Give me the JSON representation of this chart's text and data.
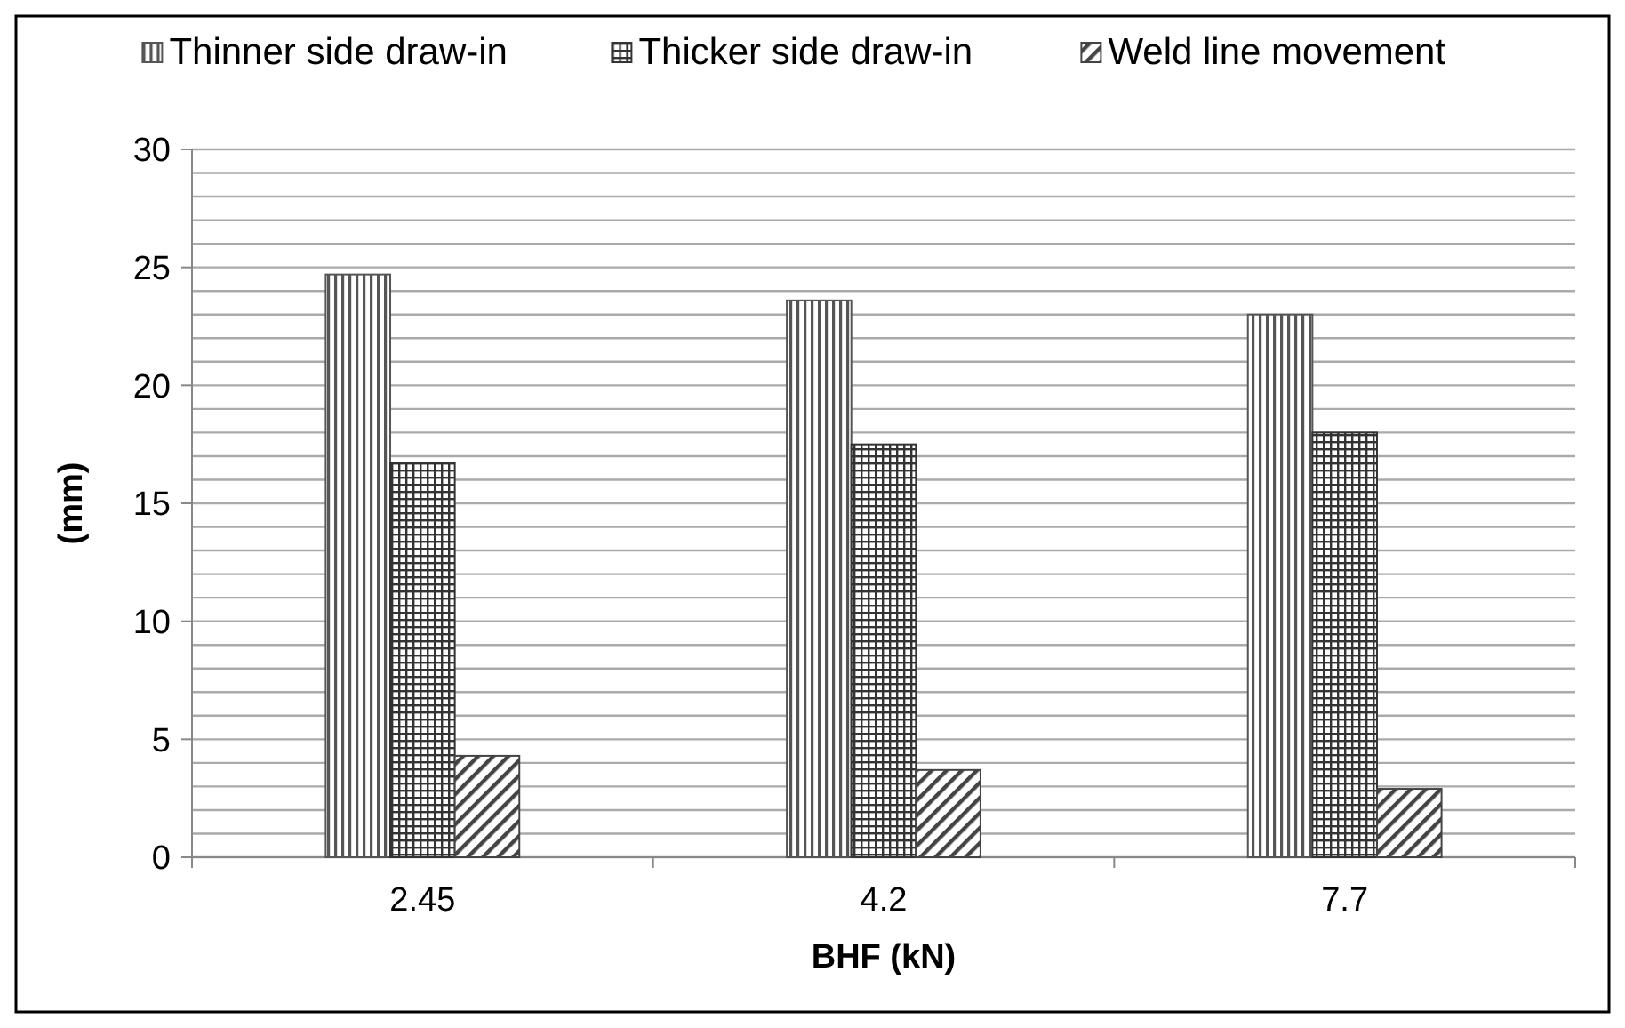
{
  "chart_data": {
    "type": "bar",
    "xlabel": "BHF (kN)",
    "ylabel": "(mm)",
    "categories": [
      "2.45",
      "4.2",
      "7.7"
    ],
    "series": [
      {
        "name": "Thinner side draw-in",
        "color": "#555555",
        "values": [
          24.7,
          23.6,
          23.0
        ]
      },
      {
        "name": "Thicker side draw-in",
        "color": "#333333",
        "values": [
          16.7,
          17.5,
          18.0
        ]
      },
      {
        "name": "Weld line movement",
        "color": "#444444",
        "values": [
          4.3,
          3.7,
          2.9
        ]
      }
    ],
    "ylim": [
      0,
      30
    ],
    "yticks": [
      0,
      {
        "value": 1,
        "label": null
      },
      {
        "value": 2,
        "label": null
      },
      {
        "value": 3,
        "label": null
      },
      {
        "value": 4,
        "label": null
      },
      5,
      {
        "value": 6,
        "label": null
      },
      {
        "value": 7,
        "label": null
      },
      {
        "value": 8,
        "label": null
      },
      {
        "value": 9,
        "label": null
      },
      10,
      {
        "value": 11,
        "label": null
      },
      {
        "value": 12,
        "label": null
      },
      {
        "value": 13,
        "label": null
      },
      {
        "value": 14,
        "label": null
      },
      15,
      {
        "value": 16,
        "label": null
      },
      {
        "value": 17,
        "label": null
      },
      {
        "value": 18,
        "label": null
      },
      {
        "value": 19,
        "label": null
      },
      20,
      {
        "value": 21,
        "label": null
      },
      {
        "value": 22,
        "label": null
      },
      {
        "value": 23,
        "label": null
      },
      {
        "value": 24,
        "label": null
      },
      25,
      {
        "value": 26,
        "label": null
      },
      {
        "value": 27,
        "label": null
      },
      {
        "value": 28,
        "label": null
      },
      {
        "value": 29,
        "label": null
      },
      30
    ],
    "grid": "y",
    "legend": "top"
  }
}
